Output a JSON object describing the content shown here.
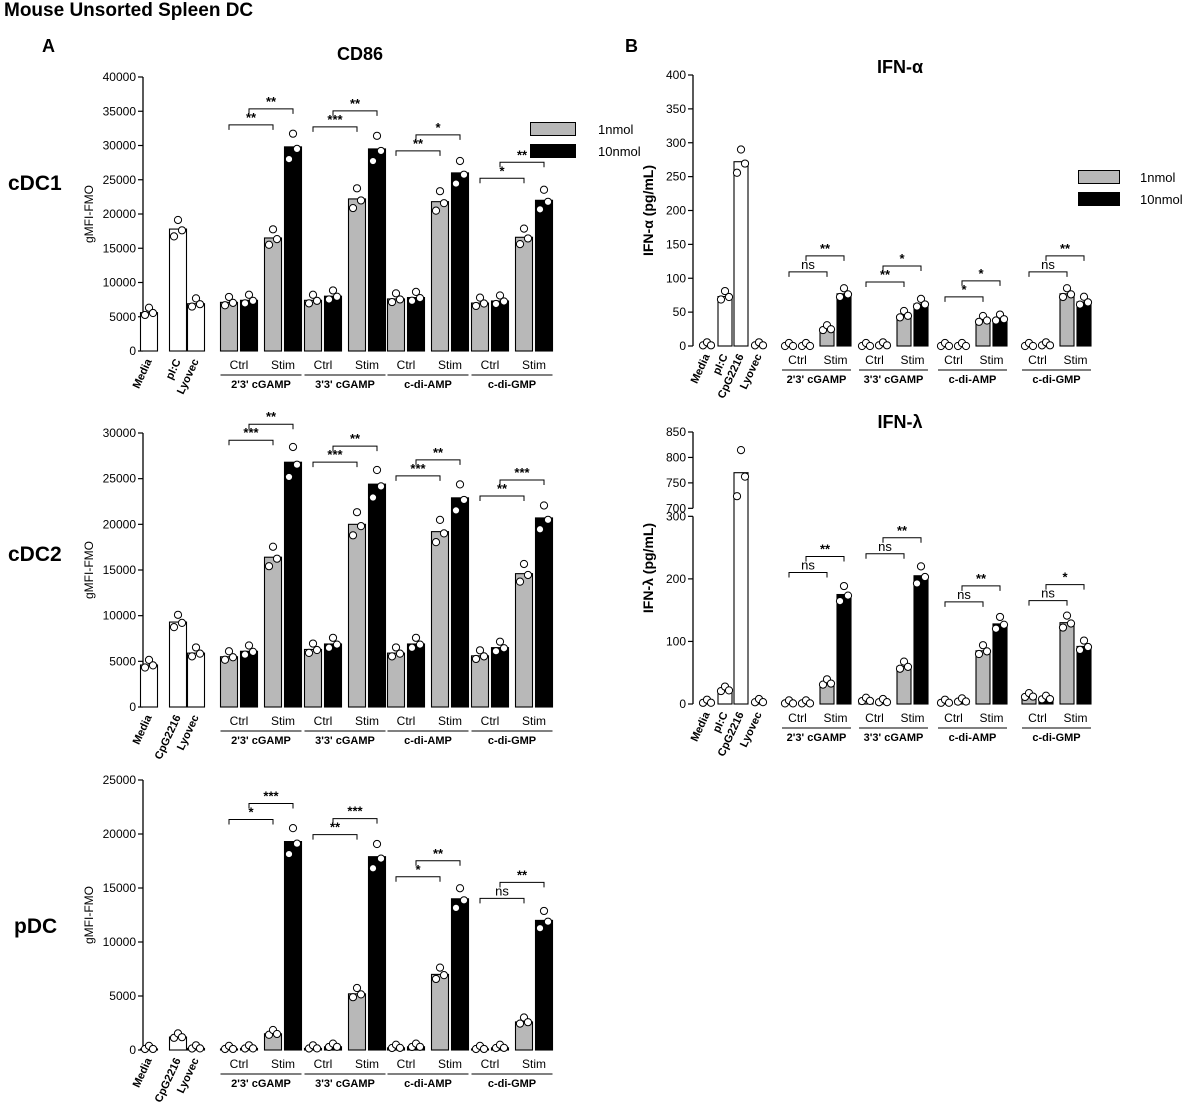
{
  "figure_title": "Mouse Unsorted Spleen DC",
  "panel_a": {
    "letter": "A",
    "title": "CD86",
    "row_labels": [
      "cDC1",
      "cDC2",
      "pDC"
    ]
  },
  "panel_b": {
    "letter": "B",
    "titles": [
      "IFN-α",
      "IFN-λ"
    ]
  },
  "legends": [
    {
      "items": [
        {
          "label": "1nmol",
          "color": "#b8b8b8"
        },
        {
          "label": "10nmol",
          "color": "#000000"
        }
      ]
    },
    {
      "items": [
        {
          "label": "1nmol",
          "color": "#b8b8b8"
        },
        {
          "label": "10nmol",
          "color": "#000000"
        }
      ]
    }
  ],
  "colors": {
    "control": "#ffffff",
    "low": "#b8b8b8",
    "high": "#000000"
  },
  "chart_data": [
    {
      "id": "cdc1",
      "type": "bar",
      "row_label": "cDC1",
      "ylabel": "gMFI-FMO",
      "ylim": [
        0,
        40000
      ],
      "yticks": [
        "0",
        "5000",
        "10000",
        "15000",
        "20000",
        "25000",
        "30000",
        "35000",
        "40000"
      ],
      "controls": [
        {
          "label": "Media",
          "value": 5600
        },
        {
          "label": "pI:C",
          "value": 17800
        },
        {
          "label": "Lyovec",
          "value": 6900
        }
      ],
      "groups": [
        {
          "label": "2'3' cGAMP",
          "sub_labels": [
            "Ctrl",
            "Stim"
          ],
          "ctrl": [
            7100,
            7400
          ],
          "stim": [
            16500,
            29800
          ],
          "sig": [
            "**",
            "**"
          ]
        },
        {
          "label": "3'3' cGAMP",
          "sub_labels": [
            "Ctrl",
            "Stim"
          ],
          "ctrl": [
            7400,
            8000
          ],
          "stim": [
            22200,
            29500
          ],
          "sig": [
            "***",
            "**"
          ]
        },
        {
          "label": "c-di-AMP",
          "sub_labels": [
            "Ctrl",
            "Stim"
          ],
          "ctrl": [
            7600,
            7800
          ],
          "stim": [
            21800,
            26000
          ],
          "sig": [
            "**",
            "*"
          ]
        },
        {
          "label": "c-di-GMP",
          "sub_labels": [
            "Ctrl",
            "Stim"
          ],
          "ctrl": [
            7000,
            7300
          ],
          "stim": [
            16600,
            22000
          ],
          "sig": [
            "*",
            "**"
          ]
        }
      ]
    },
    {
      "id": "cdc2",
      "type": "bar",
      "row_label": "cDC2",
      "ylabel": "gMFI-FMO",
      "ylim": [
        0,
        30000
      ],
      "yticks": [
        "0",
        "5000",
        "10000",
        "15000",
        "20000",
        "25000",
        "30000"
      ],
      "controls": [
        {
          "label": "Media",
          "value": 4600
        },
        {
          "label": "CpG2216",
          "value": 9300
        },
        {
          "label": "Lyovec",
          "value": 5900
        }
      ],
      "groups": [
        {
          "label": "2'3' cGAMP",
          "sub_labels": [
            "Ctrl",
            "Stim"
          ],
          "ctrl": [
            5500,
            6100
          ],
          "stim": [
            16400,
            26800
          ],
          "sig": [
            "***",
            "**"
          ]
        },
        {
          "label": "3'3' cGAMP",
          "sub_labels": [
            "Ctrl",
            "Stim"
          ],
          "ctrl": [
            6300,
            6900
          ],
          "stim": [
            20000,
            24400
          ],
          "sig": [
            "***",
            "**"
          ]
        },
        {
          "label": "c-di-AMP",
          "sub_labels": [
            "Ctrl",
            "Stim"
          ],
          "ctrl": [
            5900,
            6900
          ],
          "stim": [
            19200,
            22900
          ],
          "sig": [
            "***",
            "**"
          ]
        },
        {
          "label": "c-di-GMP",
          "sub_labels": [
            "Ctrl",
            "Stim"
          ],
          "ctrl": [
            5600,
            6500
          ],
          "stim": [
            14600,
            20700
          ],
          "sig": [
            "**",
            "***"
          ]
        }
      ]
    },
    {
      "id": "pdc",
      "type": "bar",
      "row_label": "pDC",
      "ylabel": "gMFI-FMO",
      "ylim": [
        0,
        25000
      ],
      "yticks": [
        "0",
        "5000",
        "10000",
        "15000",
        "20000",
        "25000"
      ],
      "controls": [
        {
          "label": "Media",
          "value": 100
        },
        {
          "label": "CpG2216",
          "value": 1200
        },
        {
          "label": "Lyovec",
          "value": 150
        }
      ],
      "groups": [
        {
          "label": "2'3' cGAMP",
          "sub_labels": [
            "Ctrl",
            "Stim"
          ],
          "ctrl": [
            100,
            150
          ],
          "stim": [
            1500,
            19300
          ],
          "sig": [
            "*",
            "***"
          ]
        },
        {
          "label": "3'3' cGAMP",
          "sub_labels": [
            "Ctrl",
            "Stim"
          ],
          "ctrl": [
            150,
            300
          ],
          "stim": [
            5200,
            17900
          ],
          "sig": [
            "**",
            "***"
          ]
        },
        {
          "label": "c-di-AMP",
          "sub_labels": [
            "Ctrl",
            "Stim"
          ],
          "ctrl": [
            200,
            300
          ],
          "stim": [
            7000,
            14000
          ],
          "sig": [
            "*",
            "**"
          ]
        },
        {
          "label": "c-di-GMP",
          "sub_labels": [
            "Ctrl",
            "Stim"
          ],
          "ctrl": [
            100,
            200
          ],
          "stim": [
            2600,
            12000
          ],
          "sig": [
            "ns",
            "**"
          ]
        }
      ]
    },
    {
      "id": "ifna",
      "type": "bar",
      "title": "IFN-α",
      "ylabel": "IFN-α (pg/mL)",
      "ylim": [
        0,
        400
      ],
      "yticks": [
        "0",
        "50",
        "100",
        "150",
        "200",
        "250",
        "300",
        "350",
        "400"
      ],
      "controls": [
        {
          "label": "Media",
          "value": 1
        },
        {
          "label": "pI:C",
          "value": 73
        },
        {
          "label": "CpG2216",
          "value": 272
        },
        {
          "label": "Lyovec",
          "value": 1
        }
      ],
      "groups": [
        {
          "label": "2'3' cGAMP",
          "sub_labels": [
            "Ctrl",
            "Stim"
          ],
          "ctrl": [
            0,
            0
          ],
          "stim": [
            25,
            77
          ],
          "sig": [
            "ns",
            "**"
          ]
        },
        {
          "label": "3'3' cGAMP",
          "sub_labels": [
            "Ctrl",
            "Stim"
          ],
          "ctrl": [
            0,
            1
          ],
          "stim": [
            45,
            62
          ],
          "sig": [
            "**",
            "*"
          ]
        },
        {
          "label": "c-di-AMP",
          "sub_labels": [
            "Ctrl",
            "Stim"
          ],
          "ctrl": [
            0,
            0
          ],
          "stim": [
            38,
            40
          ],
          "sig": [
            "*",
            "*"
          ]
        },
        {
          "label": "c-di-GMP",
          "sub_labels": [
            "Ctrl",
            "Stim"
          ],
          "ctrl": [
            0,
            1
          ],
          "stim": [
            77,
            65
          ],
          "sig": [
            "ns",
            "**"
          ]
        }
      ]
    },
    {
      "id": "ifnl",
      "type": "bar",
      "title": "IFN-λ",
      "ylabel": "IFN-λ (pg/mL)",
      "ylim": [
        0,
        850
      ],
      "y_axis_break": [
        300,
        700
      ],
      "yticks": [
        "0",
        "100",
        "200",
        "300",
        "700",
        "750",
        "800",
        "850"
      ],
      "controls": [
        {
          "label": "Media",
          "value": 2
        },
        {
          "label": "pI:C",
          "value": 22
        },
        {
          "label": "CpG2216",
          "value": 770
        },
        {
          "label": "Lyovec",
          "value": 3
        }
      ],
      "groups": [
        {
          "label": "2'3' cGAMP",
          "sub_labels": [
            "Ctrl",
            "Stim"
          ],
          "ctrl": [
            1,
            1
          ],
          "stim": [
            33,
            175
          ],
          "sig": [
            "ns",
            "**"
          ]
        },
        {
          "label": "3'3' cGAMP",
          "sub_labels": [
            "Ctrl",
            "Stim"
          ],
          "ctrl": [
            5,
            3
          ],
          "stim": [
            60,
            205
          ],
          "sig": [
            "ns",
            "**"
          ]
        },
        {
          "label": "c-di-AMP",
          "sub_labels": [
            "Ctrl",
            "Stim"
          ],
          "ctrl": [
            2,
            4
          ],
          "stim": [
            85,
            128
          ],
          "sig": [
            "ns",
            "**"
          ]
        },
        {
          "label": "c-di-GMP",
          "sub_labels": [
            "Ctrl",
            "Stim"
          ],
          "ctrl": [
            12,
            8
          ],
          "stim": [
            130,
            92
          ],
          "sig": [
            "ns",
            "*"
          ]
        }
      ]
    }
  ]
}
